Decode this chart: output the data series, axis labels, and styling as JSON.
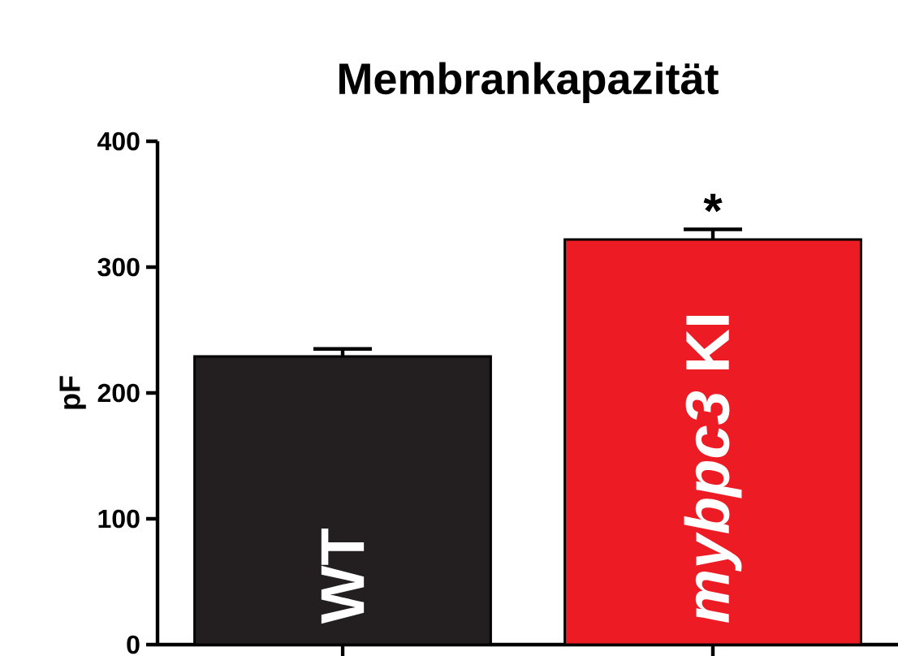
{
  "chart_data": {
    "type": "bar",
    "title": "Membrankapazität",
    "ylabel": "pF",
    "categories": [
      "WT",
      "*mybpc3* KI"
    ],
    "values": [
      229,
      322
    ],
    "errors": [
      6,
      8
    ],
    "colors": [
      "#231f20",
      "#ed1c24"
    ],
    "ylim": [
      0,
      400
    ],
    "yticks": [
      0,
      100,
      200,
      300,
      400
    ],
    "annotations": [
      "*"
    ]
  }
}
